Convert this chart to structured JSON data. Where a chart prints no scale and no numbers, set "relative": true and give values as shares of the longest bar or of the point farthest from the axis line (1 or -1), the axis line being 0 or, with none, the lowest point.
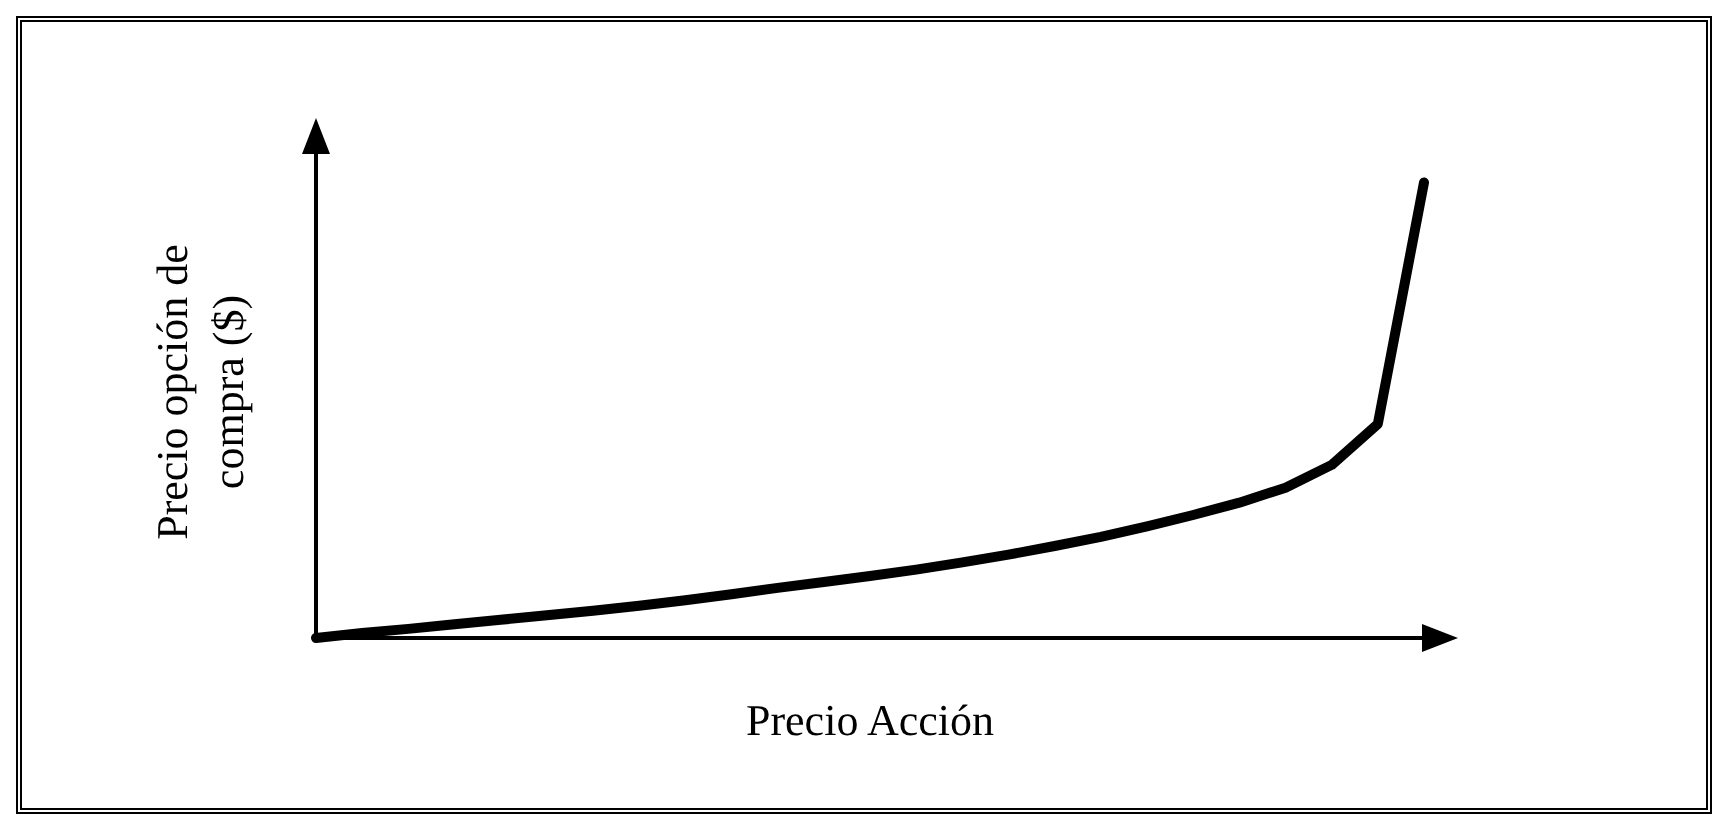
{
  "chart_data": {
    "type": "line",
    "relative": true,
    "xlabel": "Precio Acción",
    "ylabel": "Precio opción de\ncompra ($)",
    "marker": "none",
    "line_style": "solid",
    "grid": false,
    "categories": [
      null,
      null,
      null,
      null,
      null,
      null,
      null,
      null,
      null,
      null,
      null,
      null,
      null,
      null,
      null,
      null,
      null,
      null,
      null,
      null,
      null,
      null,
      null,
      null,
      null
    ],
    "series": [
      {
        "color": "#000000",
        "values": [
          0,
          0.011,
          0.02,
          0.03,
          0.04,
          0.05,
          0.06,
          0.071,
          0.083,
          0.096,
          0.11,
          0.123,
          0.136,
          0.15,
          0.166,
          0.183,
          0.202,
          0.222,
          0.245,
          0.27,
          0.297,
          0.33,
          0.38,
          0.47,
          1
        ]
      }
    ]
  }
}
